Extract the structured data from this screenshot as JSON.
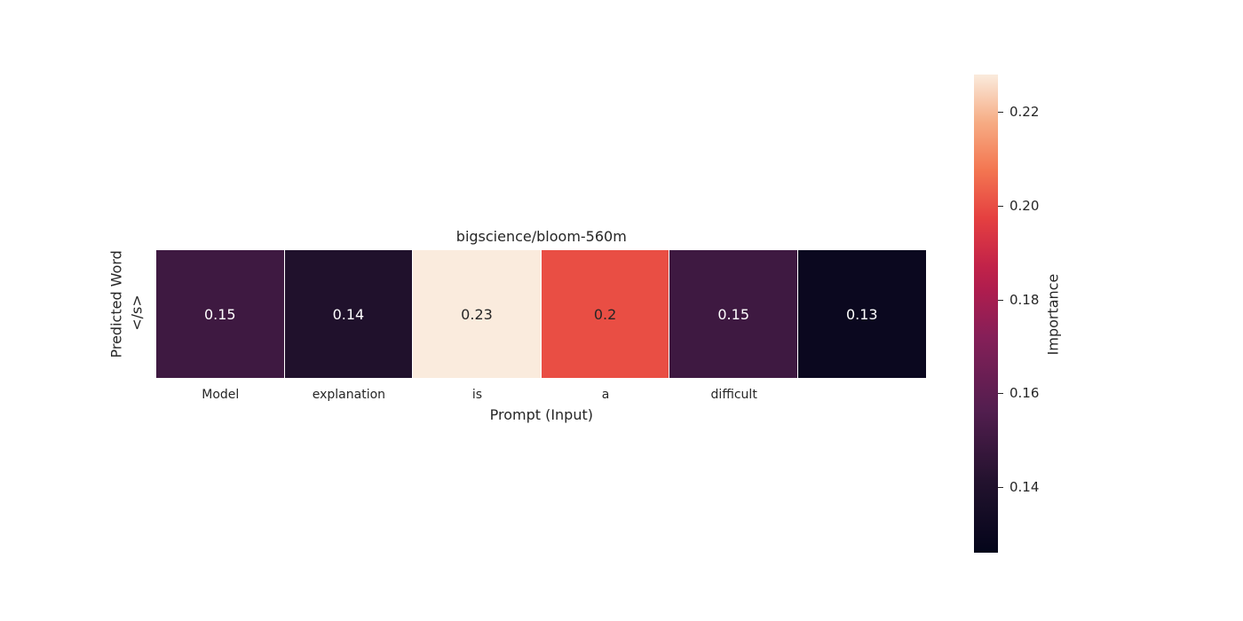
{
  "chart_data": {
    "type": "heatmap",
    "title": "bigscience/bloom-560m",
    "xlabel": "Prompt (Input)",
    "ylabel": "Predicted Word",
    "x_categories": [
      "Model",
      "explanation",
      "is",
      "a",
      "difficult",
      ""
    ],
    "y_categories": [
      "</s>"
    ],
    "values": [
      [
        0.15,
        0.14,
        0.23,
        0.2,
        0.15,
        0.13
      ]
    ],
    "cell_labels": [
      "0.15",
      "0.14",
      "0.23",
      "0.2",
      "0.15",
      "0.13"
    ],
    "colorbar": {
      "label": "Importance",
      "range": [
        0.126,
        0.228
      ],
      "ticks": [
        "0.14",
        "0.16",
        "0.18",
        "0.20",
        "0.22"
      ],
      "colormap": "rocket"
    }
  }
}
